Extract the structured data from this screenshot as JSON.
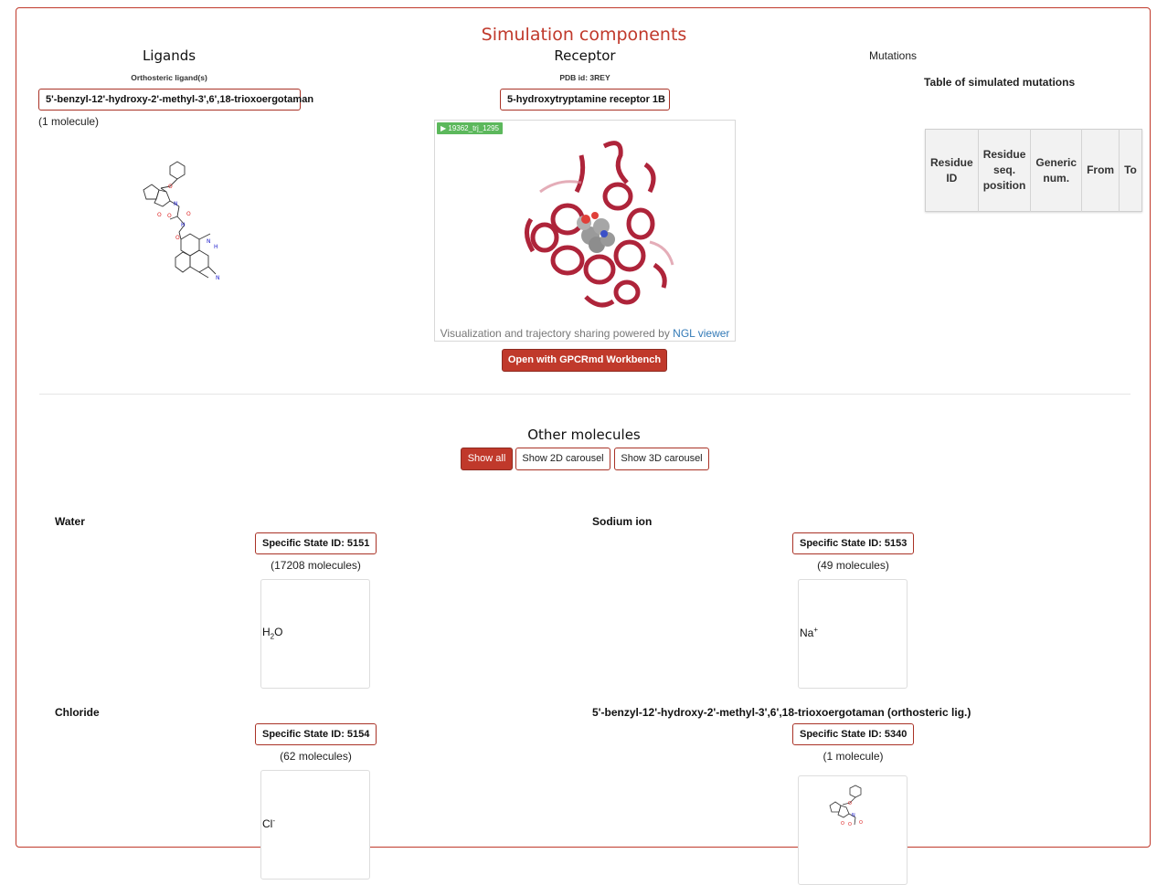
{
  "page_title": "Simulation components",
  "ligands": {
    "heading": "Ligands",
    "subheading": "Orthosteric ligand(s)",
    "name": "5'-benzyl-12'-hydroxy-2'-methyl-3',6',18-trioxoergotaman",
    "count": "(1 molecule)"
  },
  "receptor": {
    "heading": "Receptor",
    "pdb": "PDB id: 3REY",
    "name": "5-hydroxytryptamine receptor 1B",
    "trajectory_tag": "19362_trj_1295",
    "caption_prefix": "Visualization and trajectory sharing powered by ",
    "caption_link": "NGL viewer",
    "open_button": "Open with GPCRmd Workbench"
  },
  "mutations": {
    "heading": "Mutations",
    "table_title": "Table of simulated mutations",
    "columns": [
      "Residue ID",
      "Residue seq. position",
      "Generic num.",
      "From",
      "To"
    ]
  },
  "other": {
    "heading": "Other molecules",
    "buttons": [
      "Show all",
      "Show 2D carousel",
      "Show 3D carousel"
    ],
    "molecules": [
      {
        "name": "Water",
        "state": "Specific State ID: 5151",
        "count": "(17208 molecules)",
        "formula_main": "H",
        "formula_sub": "2",
        "formula_end": "O"
      },
      {
        "name": "Sodium ion",
        "state": "Specific State ID: 5153",
        "count": "(49 molecules)",
        "formula_main": "Na",
        "formula_sup": "+"
      },
      {
        "name": "Chloride",
        "state": "Specific State ID: 5154",
        "count": "(62 molecules)",
        "formula_main": "Cl",
        "formula_sup": "-"
      },
      {
        "name": "5'-benzyl-12'-hydroxy-2'-methyl-3',6',18-trioxoergotaman (orthosteric lig.)",
        "state": "Specific State ID: 5340",
        "count": "(1 molecule)"
      }
    ]
  },
  "colors": {
    "accent": "#c0392b",
    "tag_green": "#5cb85c",
    "link": "#337ab7",
    "protein": "#a8122a"
  }
}
